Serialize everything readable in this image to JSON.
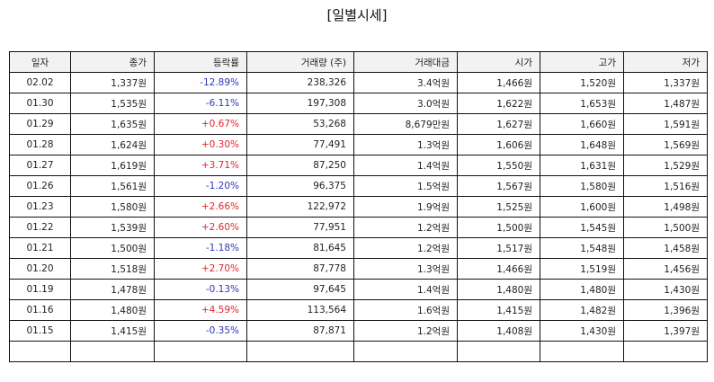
{
  "title": "[일별시세]",
  "columns": [
    "일자",
    "종가",
    "등락률",
    "거래량 (주)",
    "거래대금",
    "시가",
    "고가",
    "저가"
  ],
  "rows": [
    {
      "date": "02.02",
      "close": "1,337원",
      "change": "-12.89%",
      "dir": "down",
      "volume": "238,326",
      "amount": "3.4억원",
      "open": "1,466원",
      "high": "1,520원",
      "low": "1,337원"
    },
    {
      "date": "01.30",
      "close": "1,535원",
      "change": "-6.11%",
      "dir": "down",
      "volume": "197,308",
      "amount": "3.0억원",
      "open": "1,622원",
      "high": "1,653원",
      "low": "1,487원"
    },
    {
      "date": "01.29",
      "close": "1,635원",
      "change": "+0.67%",
      "dir": "up",
      "volume": "53,268",
      "amount": "8,679만원",
      "open": "1,627원",
      "high": "1,660원",
      "low": "1,591원"
    },
    {
      "date": "01.28",
      "close": "1,624원",
      "change": "+0.30%",
      "dir": "up",
      "volume": "77,491",
      "amount": "1.3억원",
      "open": "1,606원",
      "high": "1,648원",
      "low": "1,569원"
    },
    {
      "date": "01.27",
      "close": "1,619원",
      "change": "+3.71%",
      "dir": "up",
      "volume": "87,250",
      "amount": "1.4억원",
      "open": "1,550원",
      "high": "1,631원",
      "low": "1,529원"
    },
    {
      "date": "01.26",
      "close": "1,561원",
      "change": "-1.20%",
      "dir": "down",
      "volume": "96,375",
      "amount": "1.5억원",
      "open": "1,567원",
      "high": "1,580원",
      "low": "1,516원"
    },
    {
      "date": "01.23",
      "close": "1,580원",
      "change": "+2.66%",
      "dir": "up",
      "volume": "122,972",
      "amount": "1.9억원",
      "open": "1,525원",
      "high": "1,600원",
      "low": "1,498원"
    },
    {
      "date": "01.22",
      "close": "1,539원",
      "change": "+2.60%",
      "dir": "up",
      "volume": "77,951",
      "amount": "1.2억원",
      "open": "1,500원",
      "high": "1,545원",
      "low": "1,500원"
    },
    {
      "date": "01.21",
      "close": "1,500원",
      "change": "-1.18%",
      "dir": "down",
      "volume": "81,645",
      "amount": "1.2억원",
      "open": "1,517원",
      "high": "1,548원",
      "low": "1,458원"
    },
    {
      "date": "01.20",
      "close": "1,518원",
      "change": "+2.70%",
      "dir": "up",
      "volume": "87,778",
      "amount": "1.3억원",
      "open": "1,466원",
      "high": "1,519원",
      "low": "1,456원"
    },
    {
      "date": "01.19",
      "close": "1,478원",
      "change": "-0.13%",
      "dir": "down",
      "volume": "97,645",
      "amount": "1.4억원",
      "open": "1,480원",
      "high": "1,480원",
      "low": "1,430원"
    },
    {
      "date": "01.16",
      "close": "1,480원",
      "change": "+4.59%",
      "dir": "up",
      "volume": "113,564",
      "amount": "1.6억원",
      "open": "1,415원",
      "high": "1,482원",
      "low": "1,396원"
    },
    {
      "date": "01.15",
      "close": "1,415원",
      "change": "-0.35%",
      "dir": "down",
      "volume": "87,871",
      "amount": "1.2억원",
      "open": "1,408원",
      "high": "1,430원",
      "low": "1,397원"
    },
    {
      "date": "",
      "close": "",
      "change": "",
      "dir": "",
      "volume": "",
      "amount": "",
      "open": "",
      "high": "",
      "low": ""
    }
  ],
  "colors": {
    "up": "#e0262b",
    "down": "#2f35b8",
    "header_bg": "#f2f2f2"
  }
}
